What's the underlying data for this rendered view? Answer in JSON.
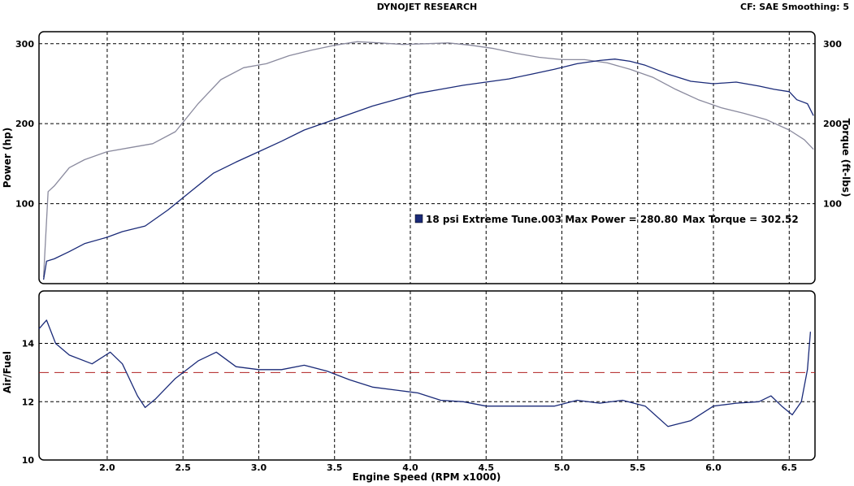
{
  "header": {
    "title": "DYNOJET RESEARCH",
    "settings": "CF: SAE  Smoothing: 5"
  },
  "colors": {
    "power": "#1a2a78",
    "torque": "#8a8a9e",
    "afr": "#1a2a78",
    "afr_target": "#b02020",
    "panel_border": "#000000"
  },
  "chart_data": [
    {
      "type": "line",
      "panel": "power-torque",
      "xlabel": "",
      "ylabel_left": "Power (hp)",
      "ylabel_right": "Torque (ft-lbs)",
      "xlim": [
        1.55,
        6.67
      ],
      "ylim": [
        0,
        315
      ],
      "x_ticks": [
        2.0,
        2.5,
        3.0,
        3.5,
        4.0,
        4.5,
        5.0,
        5.5,
        6.0,
        6.5
      ],
      "y_ticks_left": [
        100,
        200,
        300
      ],
      "y_ticks_right": [
        100,
        200,
        300
      ],
      "grid": true,
      "legend": {
        "label": "18 psi Extreme Tune.003 Max Power = 280.80",
        "extra": "Max Torque = 302.52"
      },
      "series": [
        {
          "role": "power",
          "x": [
            1.58,
            1.6,
            1.65,
            1.75,
            1.85,
            2.0,
            2.1,
            2.25,
            2.4,
            2.55,
            2.7,
            2.85,
            3.0,
            3.15,
            3.3,
            3.45,
            3.6,
            3.75,
            3.9,
            4.05,
            4.2,
            4.35,
            4.5,
            4.65,
            4.8,
            4.95,
            5.1,
            5.25,
            5.35,
            5.45,
            5.55,
            5.7,
            5.85,
            6.0,
            6.15,
            6.3,
            6.4,
            6.5,
            6.55,
            6.62,
            6.66
          ],
          "values": [
            5,
            28,
            31,
            40,
            50,
            58,
            65,
            72,
            92,
            115,
            138,
            152,
            165,
            178,
            192,
            202,
            212,
            222,
            230,
            238,
            243,
            248,
            252,
            256,
            262,
            268,
            275,
            279,
            280.8,
            278,
            273,
            262,
            253,
            250,
            252,
            247,
            243,
            240,
            230,
            225,
            210
          ]
        },
        {
          "role": "torque",
          "x": [
            1.58,
            1.61,
            1.65,
            1.75,
            1.85,
            2.0,
            2.15,
            2.3,
            2.45,
            2.6,
            2.75,
            2.9,
            3.05,
            3.2,
            3.35,
            3.5,
            3.65,
            3.8,
            3.95,
            4.1,
            4.25,
            4.4,
            4.55,
            4.7,
            4.85,
            5.0,
            5.15,
            5.3,
            5.45,
            5.6,
            5.75,
            5.9,
            6.05,
            6.2,
            6.35,
            6.5,
            6.6,
            6.66
          ],
          "values": [
            8,
            115,
            122,
            145,
            155,
            165,
            170,
            175,
            190,
            225,
            255,
            270,
            275,
            285,
            292,
            298,
            302.5,
            301,
            299,
            300,
            301,
            298,
            294,
            288,
            283,
            280,
            280,
            276,
            268,
            258,
            243,
            230,
            220,
            213,
            205,
            192,
            180,
            168
          ]
        }
      ]
    },
    {
      "type": "line",
      "panel": "air-fuel",
      "xlabel": "Engine Speed (RPM x1000)",
      "ylabel": "Air/Fuel",
      "xlim": [
        1.55,
        6.67
      ],
      "ylim": [
        10,
        15.8
      ],
      "x_ticks": [
        2.0,
        2.5,
        3.0,
        3.5,
        4.0,
        4.5,
        5.0,
        5.5,
        6.0,
        6.5
      ],
      "y_ticks": [
        10,
        12,
        14
      ],
      "grid": true,
      "target": 13.0,
      "series": [
        {
          "role": "afr",
          "x": [
            1.55,
            1.6,
            1.66,
            1.75,
            1.9,
            2.02,
            2.1,
            2.2,
            2.25,
            2.32,
            2.45,
            2.6,
            2.72,
            2.85,
            3.0,
            3.15,
            3.3,
            3.45,
            3.6,
            3.75,
            3.9,
            4.05,
            4.2,
            4.35,
            4.5,
            4.65,
            4.8,
            4.95,
            5.1,
            5.25,
            5.4,
            5.55,
            5.7,
            5.85,
            6.0,
            6.15,
            6.3,
            6.38,
            6.45,
            6.52,
            6.58,
            6.62,
            6.64
          ],
          "values": [
            14.5,
            14.8,
            14.0,
            13.6,
            13.3,
            13.7,
            13.3,
            12.2,
            11.8,
            12.1,
            12.8,
            13.4,
            13.7,
            13.2,
            13.1,
            13.1,
            13.25,
            13.05,
            12.75,
            12.5,
            12.4,
            12.3,
            12.05,
            12.0,
            11.85,
            11.85,
            11.85,
            11.85,
            12.05,
            11.95,
            12.05,
            11.85,
            11.15,
            11.35,
            11.85,
            11.95,
            12.0,
            12.2,
            11.85,
            11.55,
            12.0,
            13.1,
            14.4
          ]
        }
      ]
    }
  ]
}
